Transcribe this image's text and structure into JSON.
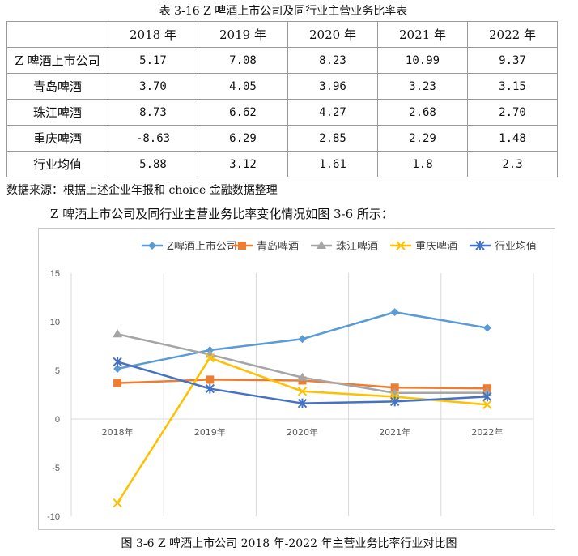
{
  "table": {
    "title": "表 3-16  Z 啤酒上市公司及同行业主营业务比率表",
    "header": [
      "",
      "2018 年",
      "2019 年",
      "2020 年",
      "2021 年",
      "2022 年"
    ],
    "rows": [
      {
        "name": "Z 啤酒上市公司",
        "values": [
          "5.17",
          "7.08",
          "8.23",
          "10.99",
          "9.37"
        ]
      },
      {
        "name": "青岛啤酒",
        "values": [
          "3.70",
          "4.05",
          "3.96",
          "3.23",
          "3.15"
        ]
      },
      {
        "name": "珠江啤酒",
        "values": [
          "8.73",
          "6.62",
          "4.27",
          "2.68",
          "2.70"
        ]
      },
      {
        "name": "重庆啤酒",
        "values": [
          "-8.63",
          "6.29",
          "2.85",
          "2.29",
          "1.48"
        ]
      },
      {
        "name": "行业均值",
        "values": [
          "5.88",
          "3.12",
          "1.61",
          "1.8",
          "2.3"
        ]
      }
    ]
  },
  "source_note": "数据来源：根据上述企业年报和 choice 金融数据整理",
  "intro_text": "Z 啤酒上市公司及同行业主营业务比率变化情况如图 3-6 所示：",
  "caption": "图 3-6  Z 啤酒上市公司 2018 年-2022 年主营业务比率行业对比图",
  "chart_data": {
    "type": "line",
    "categories": [
      "2018年",
      "2019年",
      "2020年",
      "2021年",
      "2022年"
    ],
    "ylim": [
      -10,
      15
    ],
    "yticks": [
      -10,
      -5,
      0,
      5,
      10,
      15
    ],
    "grid": "vertical",
    "legend": "top",
    "series": [
      {
        "name": "Z啤酒上市公司",
        "color": "#5b9bd5",
        "marker": "diamond",
        "values": [
          5.17,
          7.08,
          8.23,
          10.99,
          9.37
        ]
      },
      {
        "name": "青岛啤酒",
        "color": "#ed7d31",
        "marker": "square",
        "values": [
          3.7,
          4.05,
          3.96,
          3.23,
          3.15
        ]
      },
      {
        "name": "珠江啤酒",
        "color": "#a5a5a5",
        "marker": "triangle",
        "values": [
          8.73,
          6.62,
          4.27,
          2.68,
          2.7
        ]
      },
      {
        "name": "重庆啤酒",
        "color": "#ffc000",
        "marker": "x",
        "values": [
          -8.63,
          6.29,
          2.85,
          2.29,
          1.48
        ]
      },
      {
        "name": "行业均值",
        "color": "#4472c4",
        "marker": "star",
        "values": [
          5.88,
          3.12,
          1.61,
          1.8,
          2.3
        ]
      }
    ]
  }
}
